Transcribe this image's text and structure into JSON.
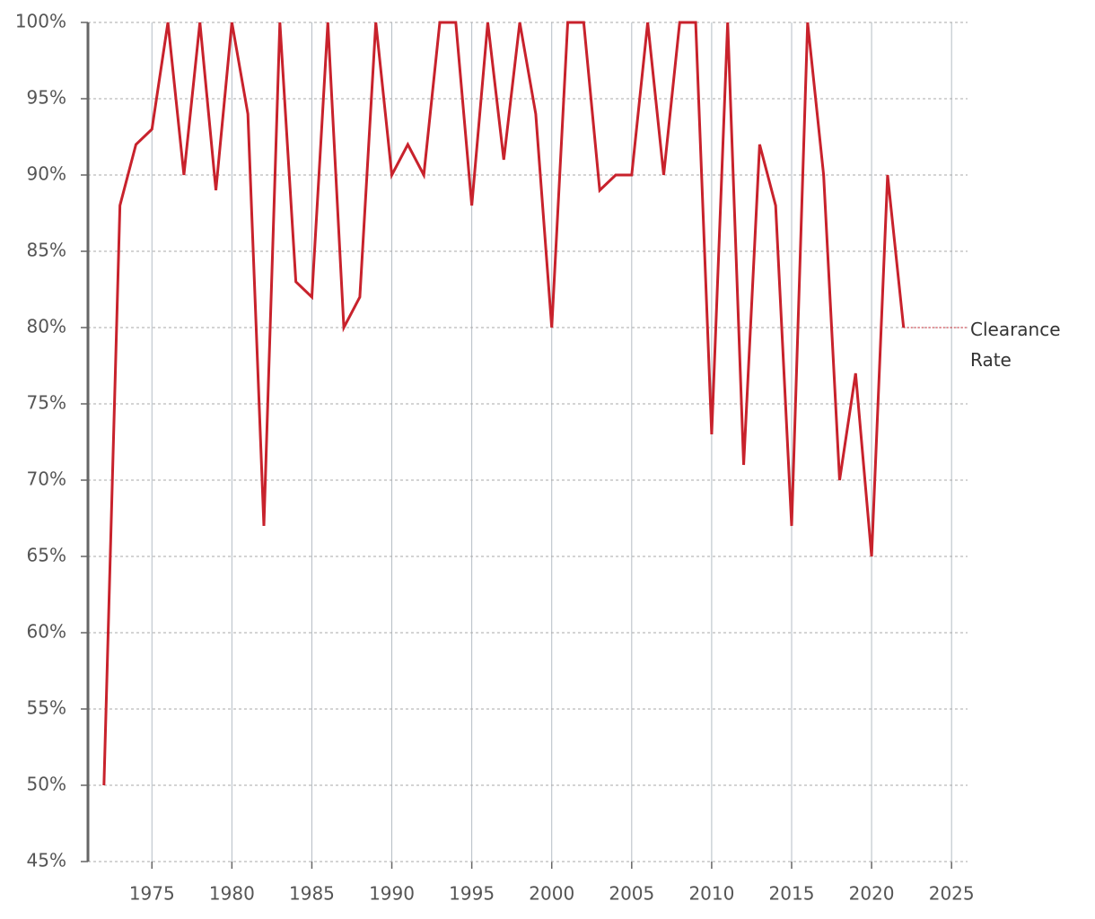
{
  "chart_data": {
    "type": "line",
    "x": [
      1972,
      1973,
      1974,
      1975,
      1976,
      1977,
      1978,
      1979,
      1980,
      1981,
      1982,
      1983,
      1984,
      1985,
      1986,
      1987,
      1988,
      1989,
      1990,
      1991,
      1992,
      1993,
      1994,
      1995,
      1996,
      1997,
      1998,
      1999,
      2000,
      2001,
      2002,
      2003,
      2004,
      2005,
      2006,
      2007,
      2008,
      2009,
      2010,
      2011,
      2012,
      2013,
      2014,
      2015,
      2016,
      2017,
      2018,
      2019,
      2020,
      2021,
      2022
    ],
    "series": [
      {
        "name": "Clearance Rate",
        "color": "#c8222c",
        "values": [
          50,
          88,
          92,
          93,
          100,
          90,
          100,
          89,
          100,
          94,
          67,
          100,
          83,
          82,
          100,
          80,
          82,
          100,
          90,
          92,
          90,
          100,
          100,
          88,
          100,
          91,
          100,
          94,
          80,
          100,
          100,
          89,
          90,
          90,
          100,
          90,
          100,
          100,
          73,
          100,
          71,
          92,
          88,
          67,
          100,
          90,
          70,
          77,
          65,
          90,
          80
        ]
      }
    ],
    "xlim": [
      1971,
      2026
    ],
    "xticks": [
      1975,
      1980,
      1985,
      1990,
      1995,
      2000,
      2005,
      2010,
      2015,
      2020,
      2025
    ],
    "ylim": [
      45,
      100
    ],
    "yticks": [
      {
        "value": 45,
        "label": "45%"
      },
      {
        "value": 50,
        "label": "50%"
      },
      {
        "value": 55,
        "label": "55%"
      },
      {
        "value": 60,
        "label": "60%"
      },
      {
        "value": 65,
        "label": "65%"
      },
      {
        "value": 70,
        "label": "70%"
      },
      {
        "value": 75,
        "label": "75%"
      },
      {
        "value": 80,
        "label": "80%"
      },
      {
        "value": 85,
        "label": "85%"
      },
      {
        "value": 90,
        "label": "90%"
      },
      {
        "value": 95,
        "label": "95%"
      },
      {
        "value": 100,
        "label": "100%"
      }
    ],
    "grid": true
  }
}
